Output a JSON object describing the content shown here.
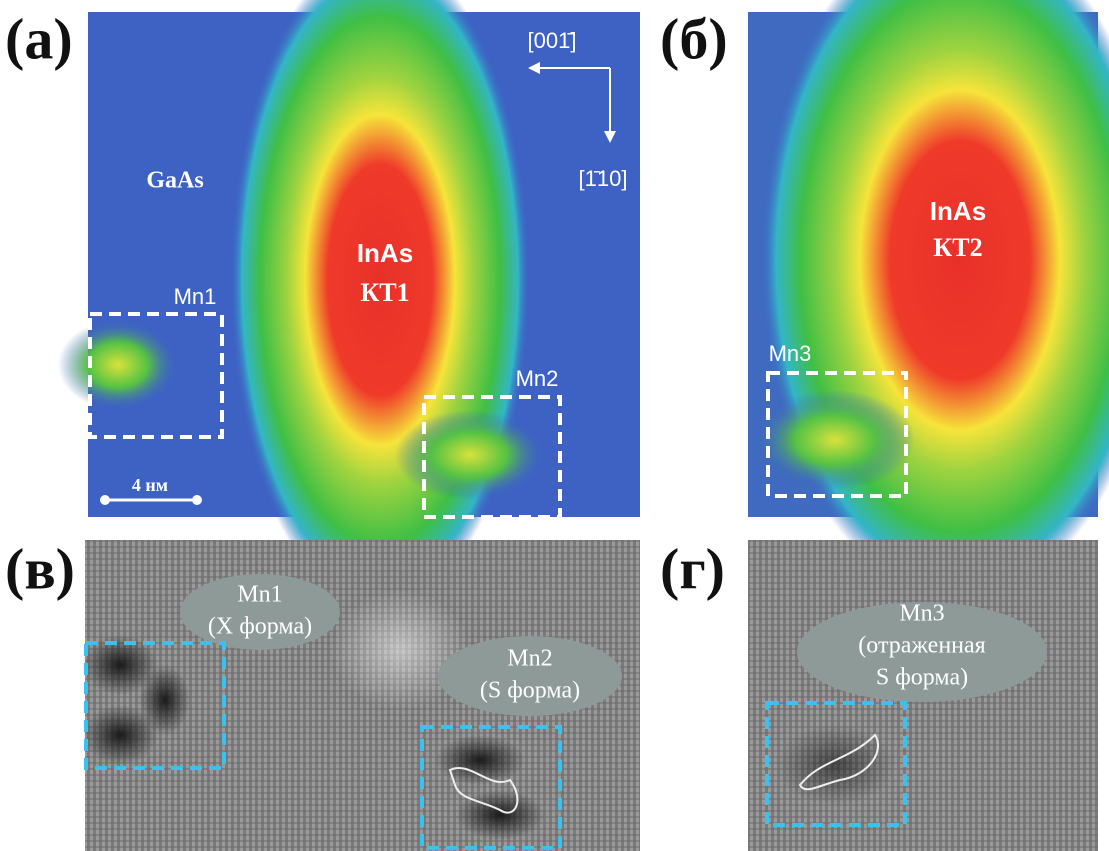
{
  "panels": [
    {
      "label": "(а)",
      "direction_1": "[001̄]",
      "direction_2": "[1̄10]",
      "substrate": "GaAs",
      "dot_material": "InAs",
      "dot_name": "КТ1",
      "impurity_1": "Mn1",
      "impurity_2": "Mn2",
      "scale": "4 нм"
    },
    {
      "label": "(б)",
      "dot_material": "InAs",
      "dot_name": "КТ2",
      "impurity_1": "Mn3"
    },
    {
      "label": "(в)",
      "impurity_1": "Mn1",
      "shape_1": "(X форма)",
      "impurity_2": "Mn2",
      "shape_2": "(S форма)"
    },
    {
      "label": "(г)",
      "impurity_1": "Mn3",
      "shape_1_line_1": "(отраженная",
      "shape_1_line_2": "S форма)"
    }
  ]
}
